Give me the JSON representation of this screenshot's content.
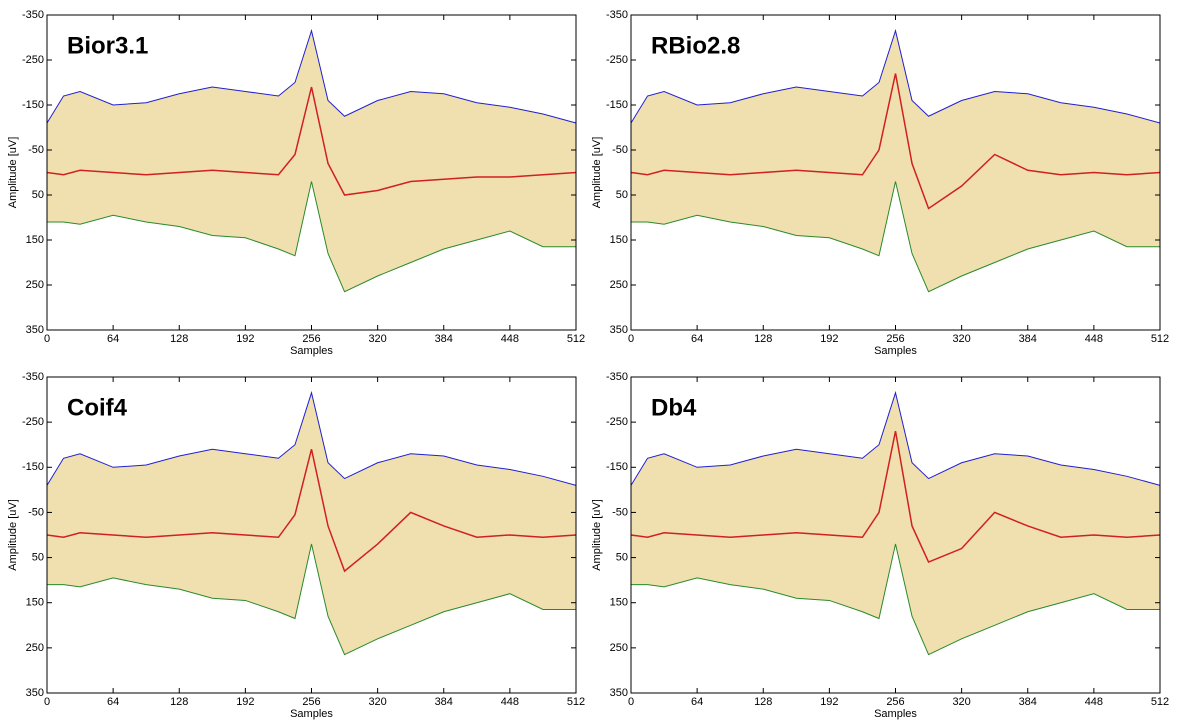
{
  "chart_data": [
    {
      "type": "envelope-line",
      "title": "Bior3.1",
      "xlabel": "Samples",
      "ylabel": "Amplitude [uV]",
      "x": [
        0,
        16,
        32,
        64,
        96,
        128,
        160,
        192,
        224,
        240,
        256,
        272,
        288,
        320,
        352,
        384,
        416,
        448,
        480,
        512
      ],
      "xlim": [
        0,
        512
      ],
      "xticks": [
        0,
        64,
        128,
        192,
        256,
        320,
        384,
        448,
        512
      ],
      "ylim": [
        -350,
        350
      ],
      "yticks": [
        -350,
        -250,
        -150,
        -50,
        50,
        150,
        250,
        350
      ],
      "y_inverted": true,
      "fill": "#f0e0b0",
      "series": [
        {
          "color": "#2020d0",
          "values": [
            -110,
            -170,
            -180,
            -150,
            -155,
            -175,
            -190,
            -180,
            -170,
            -200,
            -315,
            -160,
            -125,
            -160,
            -180,
            -175,
            -155,
            -145,
            -130,
            -110
          ]
        },
        {
          "color": "#2a8a2a",
          "values": [
            110,
            110,
            115,
            95,
            110,
            120,
            140,
            145,
            170,
            185,
            20,
            180,
            265,
            230,
            200,
            170,
            150,
            130,
            165,
            165
          ]
        },
        {
          "color": "#d02020",
          "values": [
            0,
            5,
            -5,
            0,
            5,
            0,
            -5,
            0,
            5,
            -40,
            -190,
            -20,
            50,
            40,
            20,
            15,
            10,
            10,
            5,
            0
          ]
        }
      ]
    },
    {
      "type": "envelope-line",
      "title": "RBio2.8",
      "xlabel": "Samples",
      "ylabel": "Amplitude [uV]",
      "x": [
        0,
        16,
        32,
        64,
        96,
        128,
        160,
        192,
        224,
        240,
        256,
        272,
        288,
        320,
        352,
        384,
        416,
        448,
        480,
        512
      ],
      "xlim": [
        0,
        512
      ],
      "xticks": [
        0,
        64,
        128,
        192,
        256,
        320,
        384,
        448,
        512
      ],
      "ylim": [
        -350,
        350
      ],
      "yticks": [
        -350,
        -250,
        -150,
        -50,
        50,
        150,
        250,
        350
      ],
      "y_inverted": true,
      "fill": "#f0e0b0",
      "series": [
        {
          "color": "#2020d0",
          "values": [
            -110,
            -170,
            -180,
            -150,
            -155,
            -175,
            -190,
            -180,
            -170,
            -200,
            -315,
            -160,
            -125,
            -160,
            -180,
            -175,
            -155,
            -145,
            -130,
            -110
          ]
        },
        {
          "color": "#2a8a2a",
          "values": [
            110,
            110,
            115,
            95,
            110,
            120,
            140,
            145,
            170,
            185,
            20,
            180,
            265,
            230,
            200,
            170,
            150,
            130,
            165,
            165
          ]
        },
        {
          "color": "#d02020",
          "values": [
            0,
            5,
            -5,
            0,
            5,
            0,
            -5,
            0,
            5,
            -50,
            -220,
            -20,
            80,
            30,
            -40,
            -5,
            5,
            0,
            5,
            0
          ]
        }
      ]
    },
    {
      "type": "envelope-line",
      "title": "Coif4",
      "xlabel": "Samples",
      "ylabel": "Amplitude [uV]",
      "x": [
        0,
        16,
        32,
        64,
        96,
        128,
        160,
        192,
        224,
        240,
        256,
        272,
        288,
        320,
        352,
        384,
        416,
        448,
        480,
        512
      ],
      "xlim": [
        0,
        512
      ],
      "xticks": [
        0,
        64,
        128,
        192,
        256,
        320,
        384,
        448,
        512
      ],
      "ylim": [
        -350,
        350
      ],
      "yticks": [
        -350,
        -250,
        -150,
        -50,
        50,
        150,
        250,
        350
      ],
      "y_inverted": true,
      "fill": "#f0e0b0",
      "series": [
        {
          "color": "#2020d0",
          "values": [
            -110,
            -170,
            -180,
            -150,
            -155,
            -175,
            -190,
            -180,
            -170,
            -200,
            -315,
            -160,
            -125,
            -160,
            -180,
            -175,
            -155,
            -145,
            -130,
            -110
          ]
        },
        {
          "color": "#2a8a2a",
          "values": [
            110,
            110,
            115,
            95,
            110,
            120,
            140,
            145,
            170,
            185,
            20,
            180,
            265,
            230,
            200,
            170,
            150,
            130,
            165,
            165
          ]
        },
        {
          "color": "#d02020",
          "values": [
            0,
            5,
            -5,
            0,
            5,
            0,
            -5,
            0,
            5,
            -45,
            -190,
            -20,
            80,
            20,
            -50,
            -20,
            5,
            0,
            5,
            0
          ]
        }
      ]
    },
    {
      "type": "envelope-line",
      "title": "Db4",
      "xlabel": "Samples",
      "ylabel": "Amplitude [uV]",
      "x": [
        0,
        16,
        32,
        64,
        96,
        128,
        160,
        192,
        224,
        240,
        256,
        272,
        288,
        320,
        352,
        384,
        416,
        448,
        480,
        512
      ],
      "xlim": [
        0,
        512
      ],
      "xticks": [
        0,
        64,
        128,
        192,
        256,
        320,
        384,
        448,
        512
      ],
      "ylim": [
        -350,
        350
      ],
      "yticks": [
        -350,
        -250,
        -150,
        -50,
        50,
        150,
        250,
        350
      ],
      "y_inverted": true,
      "fill": "#f0e0b0",
      "series": [
        {
          "color": "#2020d0",
          "values": [
            -110,
            -170,
            -180,
            -150,
            -155,
            -175,
            -190,
            -180,
            -170,
            -200,
            -315,
            -160,
            -125,
            -160,
            -180,
            -175,
            -155,
            -145,
            -130,
            -110
          ]
        },
        {
          "color": "#2a8a2a",
          "values": [
            110,
            110,
            115,
            95,
            110,
            120,
            140,
            145,
            170,
            185,
            20,
            180,
            265,
            230,
            200,
            170,
            150,
            130,
            165,
            165
          ]
        },
        {
          "color": "#d02020",
          "values": [
            0,
            5,
            -5,
            0,
            5,
            0,
            -5,
            0,
            5,
            -50,
            -230,
            -20,
            60,
            30,
            -50,
            -20,
            5,
            0,
            5,
            0
          ]
        }
      ]
    }
  ]
}
